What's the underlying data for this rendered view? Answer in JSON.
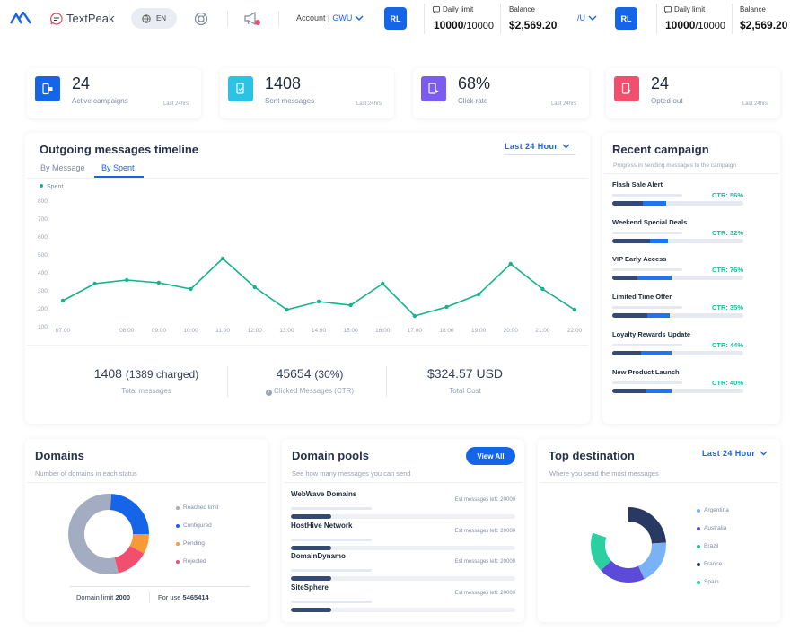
{
  "header": {
    "brand": "TextPeak",
    "lang": "EN",
    "account_prefix": "Account | ",
    "account_code": "GWU",
    "account_trunc": "/U",
    "avatar": "RL",
    "daily_limit_label": "Daily limit",
    "daily_limit_used": "10000",
    "daily_limit_total": "/10000",
    "balance_label": "Balance",
    "balance_value": "$2,569.20"
  },
  "kpis": [
    {
      "value": "24",
      "label": "Active campaigns",
      "period": "Last 24hrs",
      "color": "#1565e8",
      "icon": "campaign-icon"
    },
    {
      "value": "1408",
      "label": "Sent messages",
      "period": "Last 24hrs",
      "color": "#2ac3e6",
      "icon": "sent-message-icon"
    },
    {
      "value": "68%",
      "label": "Click rate",
      "period": "Last 24hrs",
      "color": "#7a5cf0",
      "icon": "click-icon"
    },
    {
      "value": "24",
      "label": "Opted-out",
      "period": "Last 24hrs",
      "color": "#f0506e",
      "icon": "opt-out-icon"
    }
  ],
  "timeline": {
    "title": "Outgoing messages timeline",
    "range": "Last 24 Hour",
    "tabs": [
      "By Message",
      "By Spent"
    ],
    "stats": {
      "total_value": "1408",
      "total_extra": "(1389 charged)",
      "total_label": "Total messages",
      "ctr_value": "45654",
      "ctr_extra": "(30%)",
      "ctr_label": "Clicked Messages (CTR)",
      "cost_value": "$324.57 USD",
      "cost_label": "Total Cost"
    }
  },
  "chart_data": {
    "type": "line",
    "series": [
      {
        "name": "Spent",
        "values": [
          245,
          340,
          360,
          345,
          310,
          480,
          320,
          195,
          240,
          220,
          340,
          160,
          210,
          280,
          450,
          310,
          195
        ]
      }
    ],
    "x": [
      "07:00",
      "07:30",
      "08:00",
      "09:00",
      "10:00",
      "11:00",
      "12:00",
      "13:00",
      "14:00",
      "15:00",
      "16:00",
      "17:00",
      "18:00",
      "19:00",
      "20:00",
      "21:00",
      "22:00"
    ],
    "x_tick_labels": [
      "07:00",
      "08:00",
      "09:00",
      "10:00",
      "11:00",
      "12:00",
      "13:00",
      "14:00",
      "15:00",
      "16:00",
      "17:00",
      "18:00",
      "19:00",
      "20:00",
      "21:00",
      "22:00"
    ],
    "y_ticks": [
      "100",
      "200",
      "300",
      "400",
      "500",
      "600",
      "700",
      "800"
    ],
    "ylim": [
      100,
      800
    ],
    "color": "#13b38b",
    "legend": "top-left",
    "grid": false
  },
  "recent": {
    "title": "Recent campaign",
    "subtitle": "Progress in sending messages to the campaign",
    "items": [
      {
        "name": "Flash Sale Alert",
        "ctr": "CTR: 56%",
        "dark": 0.23,
        "blue": 0.18
      },
      {
        "name": "Weekend Special Deals",
        "ctr": "CTR: 32%",
        "dark": 0.29,
        "blue": 0.14
      },
      {
        "name": "VIP Early Access",
        "ctr": "CTR: 76%",
        "dark": 0.19,
        "blue": 0.26
      },
      {
        "name": "Limited Time Offer",
        "ctr": "CTR: 35%",
        "dark": 0.27,
        "blue": 0.17
      },
      {
        "name": "Loyalty Rewards Update",
        "ctr": "CTR: 44%",
        "dark": 0.22,
        "blue": 0.23
      },
      {
        "name": "New Product Launch",
        "ctr": "CTR: 40%",
        "dark": 0.26,
        "blue": 0.19
      }
    ]
  },
  "domains": {
    "title": "Domains",
    "subtitle": "Number of domains in each status",
    "legend": [
      {
        "label": "Reached limit",
        "color": "#a3acc0",
        "value": 0.55
      },
      {
        "label": "Configured",
        "color": "#1565e8",
        "value": 0.24
      },
      {
        "label": "Pending",
        "color": "#f59a36",
        "value": 0.08
      },
      {
        "label": "Rejected",
        "color": "#f0506e",
        "value": 0.13
      }
    ],
    "limit_label": "Domain limit",
    "limit_value": "2000",
    "foruse_label": "For use",
    "foruse_value": "5465414"
  },
  "pools": {
    "title": "Domain pools",
    "subtitle": "See how many messages you can send",
    "button": "View All",
    "items": [
      {
        "name": "WebWave Domains",
        "est": "Est messages left: 20000",
        "fill": 0.18
      },
      {
        "name": "HostHive Network",
        "est": "Est messages left: 20000",
        "fill": 0.18
      },
      {
        "name": "DomainDynamo",
        "est": "Est messages left: 20000",
        "fill": 0.18
      },
      {
        "name": "SiteSphere",
        "est": "Est messages left: 20000",
        "fill": 0.18
      }
    ]
  },
  "destinations": {
    "title": "Top destination",
    "subtitle": "Where you send the most messages",
    "range": "Last 24 Hour",
    "legend": [
      {
        "label": "Argentina",
        "color": "#7ab3f5",
        "value": 0.19
      },
      {
        "label": "Australia",
        "color": "#5d4ad8",
        "value": 0.2
      },
      {
        "label": "Brazil",
        "color": "#1bc689",
        "value": 0.2
      },
      {
        "label": "France",
        "color": "#283a62",
        "value": 0.24
      },
      {
        "label": "Spain",
        "color": "#2ad0a0",
        "value": 0.17
      }
    ]
  }
}
